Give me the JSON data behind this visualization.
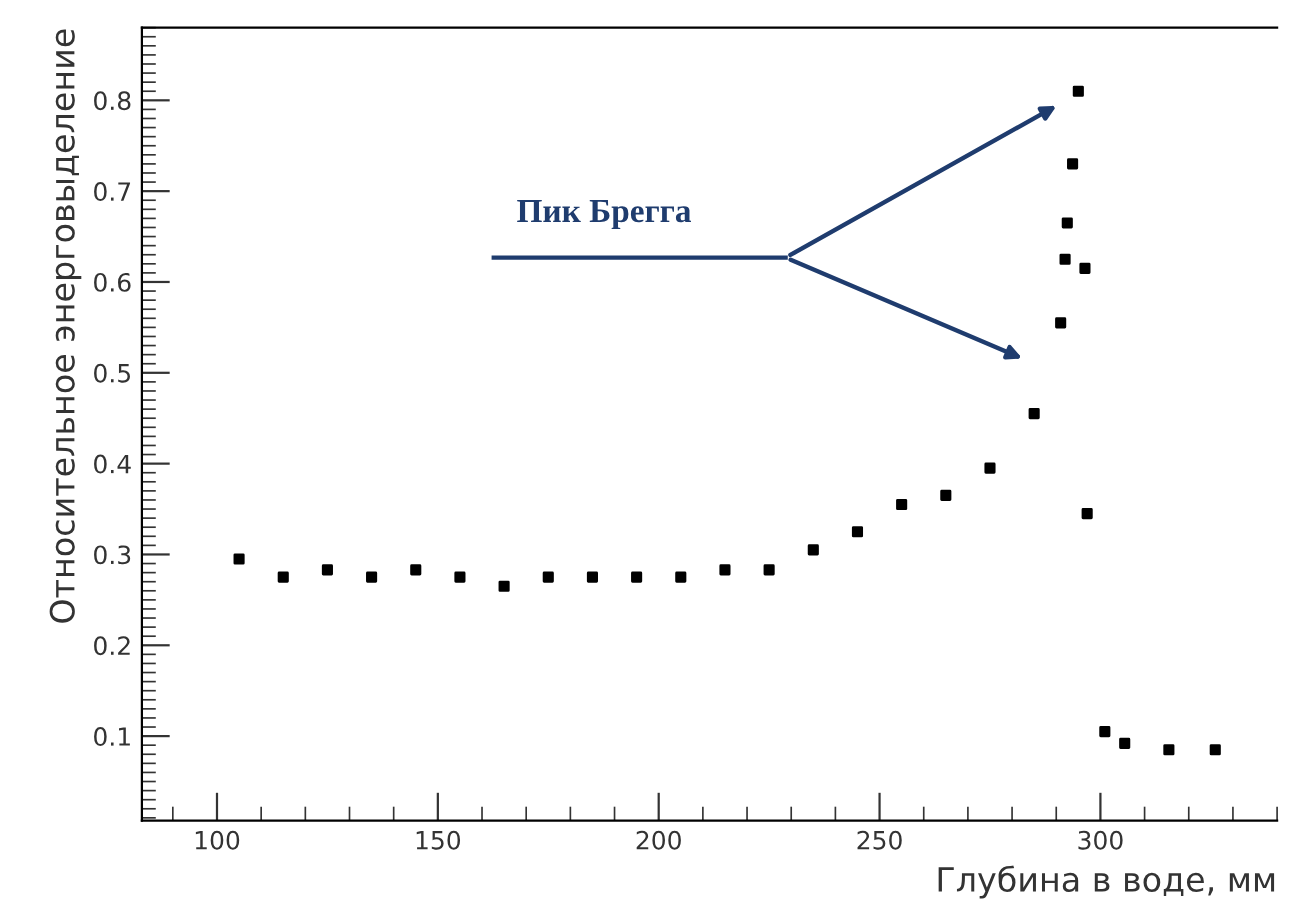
{
  "chart_data": {
    "type": "scatter",
    "xlabel": "Глубина в воде, мм",
    "ylabel": "Относительное энерговыделение",
    "x": [
      105,
      115,
      125,
      135,
      145,
      155,
      165,
      175,
      185,
      195,
      205,
      215,
      225,
      235,
      245,
      255,
      265,
      275,
      285,
      291,
      292,
      292.5,
      293.7,
      295,
      296.5,
      297,
      301,
      305.5,
      315.5,
      326
    ],
    "series": [
      {
        "color": "#000000",
        "values": [
          0.295,
          0.275,
          0.283,
          0.275,
          0.283,
          0.275,
          0.265,
          0.275,
          0.275,
          0.275,
          0.275,
          0.283,
          0.283,
          0.305,
          0.325,
          0.355,
          0.365,
          0.395,
          0.455,
          0.555,
          0.625,
          0.665,
          0.73,
          0.81,
          0.615,
          0.345,
          0.105,
          0.092,
          0.085,
          0.085
        ]
      }
    ],
    "marker": "square",
    "xlim": [
      83,
      340
    ],
    "ylim": [
      0.007,
      0.88
    ],
    "xticks": [
      100,
      150,
      200,
      250,
      300
    ],
    "yticks": [
      0.1,
      0.2,
      0.3,
      0.4,
      0.5,
      0.6,
      0.7,
      0.8
    ],
    "annotations": [
      "Пик Брегга"
    ],
    "grid": false,
    "legend": false
  }
}
